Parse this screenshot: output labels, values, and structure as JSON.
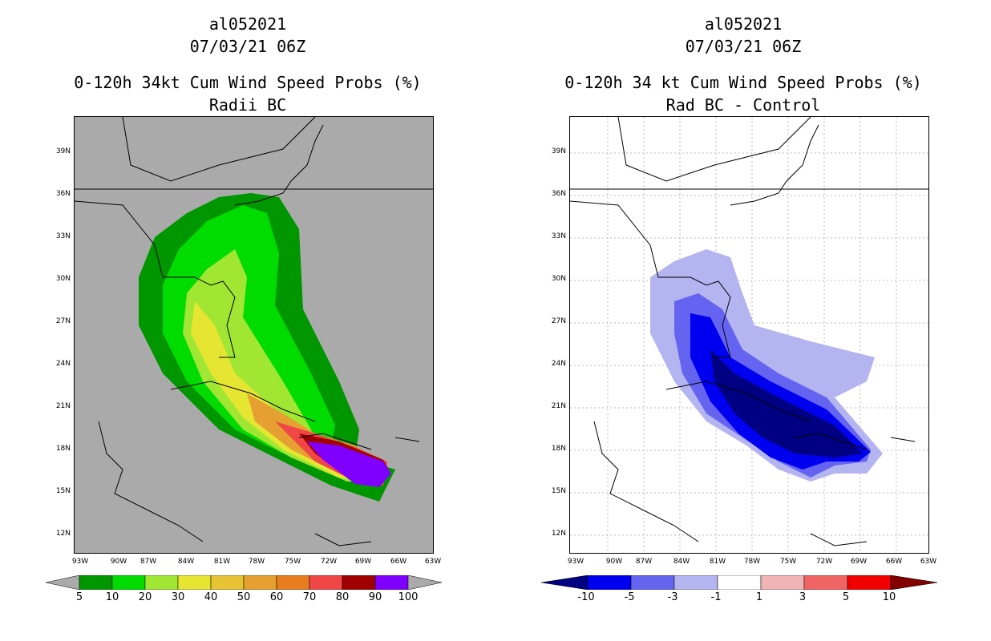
{
  "left": {
    "title_line1": "al052021",
    "title_line2": "07/03/21 06Z",
    "title_line3": "0-120h 34kt Cum Wind Speed Probs (%)",
    "title_line4": "Radii BC",
    "colorbar_labels": [
      "5",
      "10",
      "20",
      "30",
      "40",
      "50",
      "60",
      "70",
      "80",
      "90",
      "100"
    ],
    "colorbar_colors": [
      "#009600",
      "#00dc00",
      "#a0e632",
      "#e6e632",
      "#e6c332",
      "#e6a032",
      "#e67d1e",
      "#f04646",
      "#a00000",
      "#7f00ff"
    ]
  },
  "right": {
    "title_line1": "al052021",
    "title_line2": "07/03/21 06Z",
    "title_line3": "0-120h 34 kt Cum Wind Speed Probs (%)",
    "title_line4": "Rad BC - Control",
    "colorbar_labels": [
      "-10",
      "-5",
      "-3",
      "-1",
      "1",
      "3",
      "5",
      "10"
    ],
    "colorbar_colors": [
      "#000082",
      "#0000f0",
      "#6464f0",
      "#b4b4f0",
      "#ffffff",
      "#f0b4b4",
      "#f06464",
      "#f00000",
      "#820000"
    ]
  },
  "axes": {
    "lat_labels": [
      "39N",
      "36N",
      "33N",
      "30N",
      "27N",
      "24N",
      "21N",
      "18N",
      "15N",
      "12N"
    ],
    "lon_labels": [
      "93W",
      "90W",
      "87W",
      "84W",
      "81W",
      "78W",
      "75W",
      "72W",
      "69W",
      "66W",
      "63W"
    ]
  }
}
